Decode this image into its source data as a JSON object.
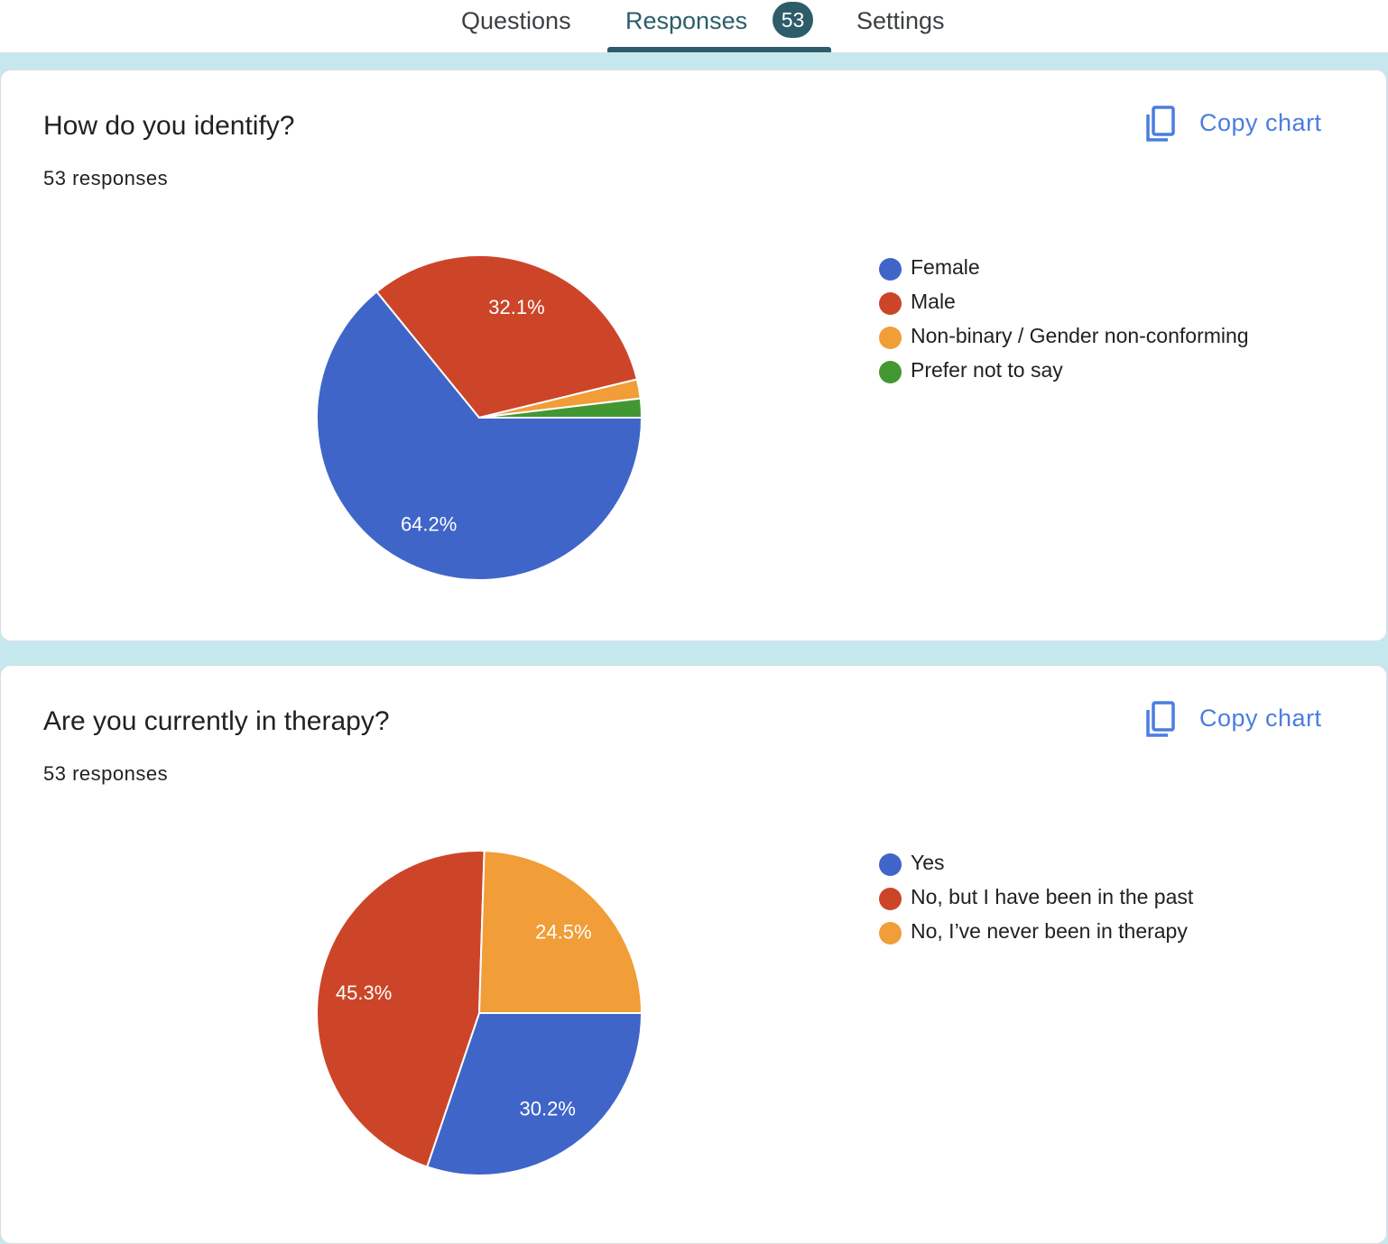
{
  "tabs": {
    "questions": "Questions",
    "responses": "Responses",
    "responses_badge": "53",
    "settings": "Settings"
  },
  "colors": {
    "accent": "#2c5d69",
    "background": "#c5e8ef",
    "link": "#4b7de0"
  },
  "cards": [
    {
      "title": "How do you identify?",
      "count": "53 responses",
      "copy_label": "Copy chart",
      "copy_icon": "copy-icon"
    },
    {
      "title": "Are you currently in therapy?",
      "count": "53 responses",
      "copy_label": "Copy chart",
      "copy_icon": "copy-icon"
    }
  ],
  "chart_data": [
    {
      "type": "pie",
      "title": "How do you identify?",
      "categories": [
        "Female",
        "Male",
        "Non-binary / Gender non-conforming",
        "Prefer not to say"
      ],
      "values": [
        64.2,
        32.1,
        1.9,
        1.9
      ],
      "slice_labels": [
        "64.2%",
        "32.1%",
        "",
        ""
      ],
      "colors": [
        "#4065c9",
        "#cc4528",
        "#f19d38",
        "#439733"
      ],
      "legend_position": "right"
    },
    {
      "type": "pie",
      "title": "Are you currently in therapy?",
      "categories": [
        "Yes",
        "No, but I have been in the past",
        "No, I’ve never been in therapy"
      ],
      "values": [
        30.2,
        45.3,
        24.5
      ],
      "slice_labels": [
        "30.2%",
        "45.3%",
        "24.5%"
      ],
      "colors": [
        "#4065c9",
        "#cc4528",
        "#f19d38"
      ],
      "legend_position": "right"
    }
  ]
}
